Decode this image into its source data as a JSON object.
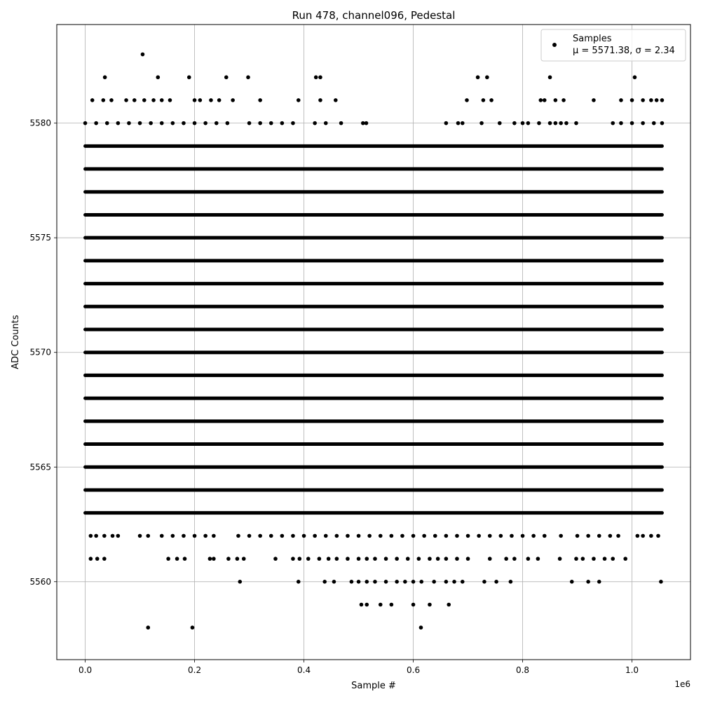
{
  "chart_data": {
    "type": "scatter",
    "title": "Run 478, channel096, Pedestal",
    "xlabel": "Sample #",
    "ylabel": "ADC Counts",
    "x_offset_text": "1e6",
    "xlim": [
      -0.052,
      1.107
    ],
    "ylim": [
      5556.6,
      5584.3
    ],
    "x_ticks": [
      0.0,
      0.2,
      0.4,
      0.6,
      0.8,
      1.0
    ],
    "x_tick_labels": [
      "0.0",
      "0.2",
      "0.4",
      "0.6",
      "0.8",
      "1.0"
    ],
    "y_ticks": [
      5560,
      5565,
      5570,
      5575,
      5580
    ],
    "y_tick_labels": [
      "5560",
      "5565",
      "5570",
      "5575",
      "5580"
    ],
    "grid": true,
    "legend_position": "top-right",
    "marker_color": "#000000",
    "series": [
      {
        "name": "Samples",
        "stats_label": "μ = 5571.38, σ = 2.34",
        "x_range": [
          0.0,
          1.055
        ],
        "dense_levels": [
          5563,
          5564,
          5565,
          5566,
          5567,
          5568,
          5569,
          5570,
          5571,
          5572,
          5573,
          5574,
          5575,
          5576,
          5577,
          5578,
          5579
        ],
        "sparse_points": [
          [
            0.105,
            5583
          ],
          [
            0.036,
            5582
          ],
          [
            0.133,
            5582
          ],
          [
            0.19,
            5582
          ],
          [
            0.258,
            5582
          ],
          [
            0.298,
            5582
          ],
          [
            0.422,
            5582
          ],
          [
            0.43,
            5582
          ],
          [
            0.718,
            5582
          ],
          [
            0.735,
            5582
          ],
          [
            0.85,
            5582
          ],
          [
            1.005,
            5582
          ],
          [
            0.013,
            5581
          ],
          [
            0.033,
            5581
          ],
          [
            0.048,
            5581
          ],
          [
            0.075,
            5581
          ],
          [
            0.09,
            5581
          ],
          [
            0.108,
            5581
          ],
          [
            0.125,
            5581
          ],
          [
            0.14,
            5581
          ],
          [
            0.155,
            5581
          ],
          [
            0.2,
            5581
          ],
          [
            0.21,
            5581
          ],
          [
            0.23,
            5581
          ],
          [
            0.245,
            5581
          ],
          [
            0.27,
            5581
          ],
          [
            0.32,
            5581
          ],
          [
            0.39,
            5581
          ],
          [
            0.43,
            5581
          ],
          [
            0.458,
            5581
          ],
          [
            0.698,
            5581
          ],
          [
            0.728,
            5581
          ],
          [
            0.743,
            5581
          ],
          [
            0.833,
            5581
          ],
          [
            0.84,
            5581
          ],
          [
            0.86,
            5581
          ],
          [
            0.875,
            5581
          ],
          [
            0.93,
            5581
          ],
          [
            0.98,
            5581
          ],
          [
            1.0,
            5581
          ],
          [
            1.02,
            5581
          ],
          [
            1.035,
            5581
          ],
          [
            1.045,
            5581
          ],
          [
            1.055,
            5581
          ],
          [
            0.0,
            5580
          ],
          [
            0.02,
            5580
          ],
          [
            0.04,
            5580
          ],
          [
            0.06,
            5580
          ],
          [
            0.08,
            5580
          ],
          [
            0.1,
            5580
          ],
          [
            0.12,
            5580
          ],
          [
            0.14,
            5580
          ],
          [
            0.16,
            5580
          ],
          [
            0.18,
            5580
          ],
          [
            0.2,
            5580
          ],
          [
            0.22,
            5580
          ],
          [
            0.24,
            5580
          ],
          [
            0.26,
            5580
          ],
          [
            0.3,
            5580
          ],
          [
            0.32,
            5580
          ],
          [
            0.34,
            5580
          ],
          [
            0.36,
            5580
          ],
          [
            0.38,
            5580
          ],
          [
            0.42,
            5580
          ],
          [
            0.44,
            5580
          ],
          [
            0.468,
            5580
          ],
          [
            0.508,
            5580
          ],
          [
            0.514,
            5580
          ],
          [
            0.66,
            5580
          ],
          [
            0.682,
            5580
          ],
          [
            0.69,
            5580
          ],
          [
            0.725,
            5580
          ],
          [
            0.758,
            5580
          ],
          [
            0.785,
            5580
          ],
          [
            0.8,
            5580
          ],
          [
            0.81,
            5580
          ],
          [
            0.83,
            5580
          ],
          [
            0.85,
            5580
          ],
          [
            0.86,
            5580
          ],
          [
            0.87,
            5580
          ],
          [
            0.88,
            5580
          ],
          [
            0.898,
            5580
          ],
          [
            0.965,
            5580
          ],
          [
            0.98,
            5580
          ],
          [
            1.0,
            5580
          ],
          [
            1.02,
            5580
          ],
          [
            1.04,
            5580
          ],
          [
            1.055,
            5580
          ],
          [
            0.01,
            5562
          ],
          [
            0.02,
            5562
          ],
          [
            0.035,
            5562
          ],
          [
            0.05,
            5562
          ],
          [
            0.06,
            5562
          ],
          [
            0.1,
            5562
          ],
          [
            0.115,
            5562
          ],
          [
            0.14,
            5562
          ],
          [
            0.16,
            5562
          ],
          [
            0.18,
            5562
          ],
          [
            0.2,
            5562
          ],
          [
            0.22,
            5562
          ],
          [
            0.235,
            5562
          ],
          [
            0.28,
            5562
          ],
          [
            0.3,
            5562
          ],
          [
            0.32,
            5562
          ],
          [
            0.34,
            5562
          ],
          [
            0.36,
            5562
          ],
          [
            0.38,
            5562
          ],
          [
            0.4,
            5562
          ],
          [
            0.42,
            5562
          ],
          [
            0.44,
            5562
          ],
          [
            0.46,
            5562
          ],
          [
            0.48,
            5562
          ],
          [
            0.5,
            5562
          ],
          [
            0.52,
            5562
          ],
          [
            0.54,
            5562
          ],
          [
            0.56,
            5562
          ],
          [
            0.58,
            5562
          ],
          [
            0.6,
            5562
          ],
          [
            0.62,
            5562
          ],
          [
            0.64,
            5562
          ],
          [
            0.66,
            5562
          ],
          [
            0.68,
            5562
          ],
          [
            0.7,
            5562
          ],
          [
            0.72,
            5562
          ],
          [
            0.74,
            5562
          ],
          [
            0.76,
            5562
          ],
          [
            0.78,
            5562
          ],
          [
            0.8,
            5562
          ],
          [
            0.82,
            5562
          ],
          [
            0.84,
            5562
          ],
          [
            0.87,
            5562
          ],
          [
            0.9,
            5562
          ],
          [
            0.92,
            5562
          ],
          [
            0.94,
            5562
          ],
          [
            0.96,
            5562
          ],
          [
            0.975,
            5562
          ],
          [
            1.01,
            5562
          ],
          [
            1.02,
            5562
          ],
          [
            1.035,
            5562
          ],
          [
            1.048,
            5562
          ],
          [
            0.01,
            5561
          ],
          [
            0.022,
            5561
          ],
          [
            0.035,
            5561
          ],
          [
            0.152,
            5561
          ],
          [
            0.168,
            5561
          ],
          [
            0.182,
            5561
          ],
          [
            0.228,
            5561
          ],
          [
            0.235,
            5561
          ],
          [
            0.262,
            5561
          ],
          [
            0.278,
            5561
          ],
          [
            0.29,
            5561
          ],
          [
            0.348,
            5561
          ],
          [
            0.38,
            5561
          ],
          [
            0.392,
            5561
          ],
          [
            0.408,
            5561
          ],
          [
            0.428,
            5561
          ],
          [
            0.445,
            5561
          ],
          [
            0.46,
            5561
          ],
          [
            0.48,
            5561
          ],
          [
            0.5,
            5561
          ],
          [
            0.515,
            5561
          ],
          [
            0.53,
            5561
          ],
          [
            0.55,
            5561
          ],
          [
            0.57,
            5561
          ],
          [
            0.59,
            5561
          ],
          [
            0.61,
            5561
          ],
          [
            0.63,
            5561
          ],
          [
            0.645,
            5561
          ],
          [
            0.66,
            5561
          ],
          [
            0.68,
            5561
          ],
          [
            0.7,
            5561
          ],
          [
            0.74,
            5561
          ],
          [
            0.77,
            5561
          ],
          [
            0.785,
            5561
          ],
          [
            0.81,
            5561
          ],
          [
            0.828,
            5561
          ],
          [
            0.868,
            5561
          ],
          [
            0.898,
            5561
          ],
          [
            0.91,
            5561
          ],
          [
            0.93,
            5561
          ],
          [
            0.95,
            5561
          ],
          [
            0.965,
            5561
          ],
          [
            0.988,
            5561
          ],
          [
            0.283,
            5560
          ],
          [
            0.39,
            5560
          ],
          [
            0.438,
            5560
          ],
          [
            0.455,
            5560
          ],
          [
            0.487,
            5560
          ],
          [
            0.5,
            5560
          ],
          [
            0.515,
            5560
          ],
          [
            0.53,
            5560
          ],
          [
            0.55,
            5560
          ],
          [
            0.57,
            5560
          ],
          [
            0.585,
            5560
          ],
          [
            0.6,
            5560
          ],
          [
            0.615,
            5560
          ],
          [
            0.638,
            5560
          ],
          [
            0.66,
            5560
          ],
          [
            0.675,
            5560
          ],
          [
            0.69,
            5560
          ],
          [
            0.73,
            5560
          ],
          [
            0.752,
            5560
          ],
          [
            0.778,
            5560
          ],
          [
            0.89,
            5560
          ],
          [
            0.92,
            5560
          ],
          [
            0.94,
            5560
          ],
          [
            1.053,
            5560
          ],
          [
            0.505,
            5559
          ],
          [
            0.515,
            5559
          ],
          [
            0.54,
            5559
          ],
          [
            0.56,
            5559
          ],
          [
            0.6,
            5559
          ],
          [
            0.63,
            5559
          ],
          [
            0.665,
            5559
          ],
          [
            0.115,
            5558
          ],
          [
            0.196,
            5558
          ],
          [
            0.614,
            5558
          ]
        ]
      }
    ]
  }
}
